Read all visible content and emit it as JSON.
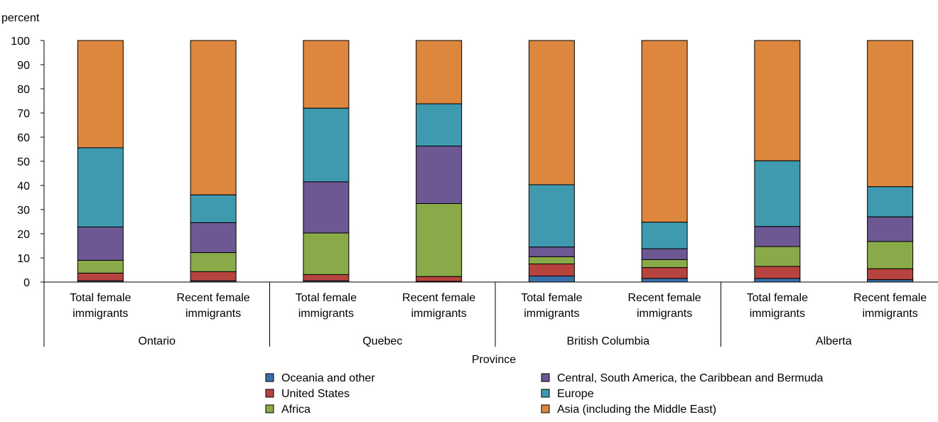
{
  "chart_data": {
    "type": "bar",
    "stacked": true,
    "ylabel": "percent",
    "xlabel": "Province",
    "ylim": [
      0,
      100
    ],
    "yticks": [
      0,
      10,
      20,
      30,
      40,
      50,
      60,
      70,
      80,
      90,
      100
    ],
    "groups": [
      {
        "name": "Ontario",
        "categories": [
          [
            "Total female",
            "immigrants"
          ],
          [
            "Recent female",
            "immigrants"
          ]
        ]
      },
      {
        "name": "Quebec",
        "categories": [
          [
            "Total female",
            "immigrants"
          ],
          [
            "Recent female",
            "immigrants"
          ]
        ]
      },
      {
        "name": "British Columbia",
        "categories": [
          [
            "Total female",
            "immigrants"
          ],
          [
            "Recent female",
            "immigrants"
          ]
        ]
      },
      {
        "name": "Alberta",
        "categories": [
          [
            "Total female",
            "immigrants"
          ],
          [
            "Recent female",
            "immigrants"
          ]
        ]
      }
    ],
    "series": [
      {
        "name": "Oceania and other",
        "color": "#3a6fa8",
        "values": [
          0.5,
          0.5,
          0.5,
          0.3,
          2.5,
          1.5,
          1.5,
          1.0
        ]
      },
      {
        "name": "United States",
        "color": "#b7433f",
        "values": [
          3.2,
          3.8,
          2.6,
          2.0,
          5.0,
          4.5,
          5.0,
          4.5
        ]
      },
      {
        "name": "Africa",
        "color": "#8aaa4a",
        "values": [
          5.3,
          7.9,
          17.2,
          30.2,
          3.0,
          3.3,
          8.2,
          11.3
        ]
      },
      {
        "name": "Central, South America, the Caribbean and Bermuda",
        "color": "#6e5893",
        "values": [
          13.8,
          12.4,
          21.2,
          23.8,
          4.0,
          4.5,
          8.3,
          10.2
        ]
      },
      {
        "name": "Europe",
        "color": "#3f9aaf",
        "values": [
          32.8,
          11.5,
          30.5,
          17.5,
          25.8,
          11.0,
          27.2,
          12.5
        ]
      },
      {
        "name": "Asia (including the Middle East)",
        "color": "#dd863d",
        "values": [
          44.4,
          63.9,
          28.0,
          26.2,
          59.7,
          75.2,
          49.8,
          60.5
        ]
      }
    ],
    "grid": false,
    "legend_position": "bottom"
  }
}
